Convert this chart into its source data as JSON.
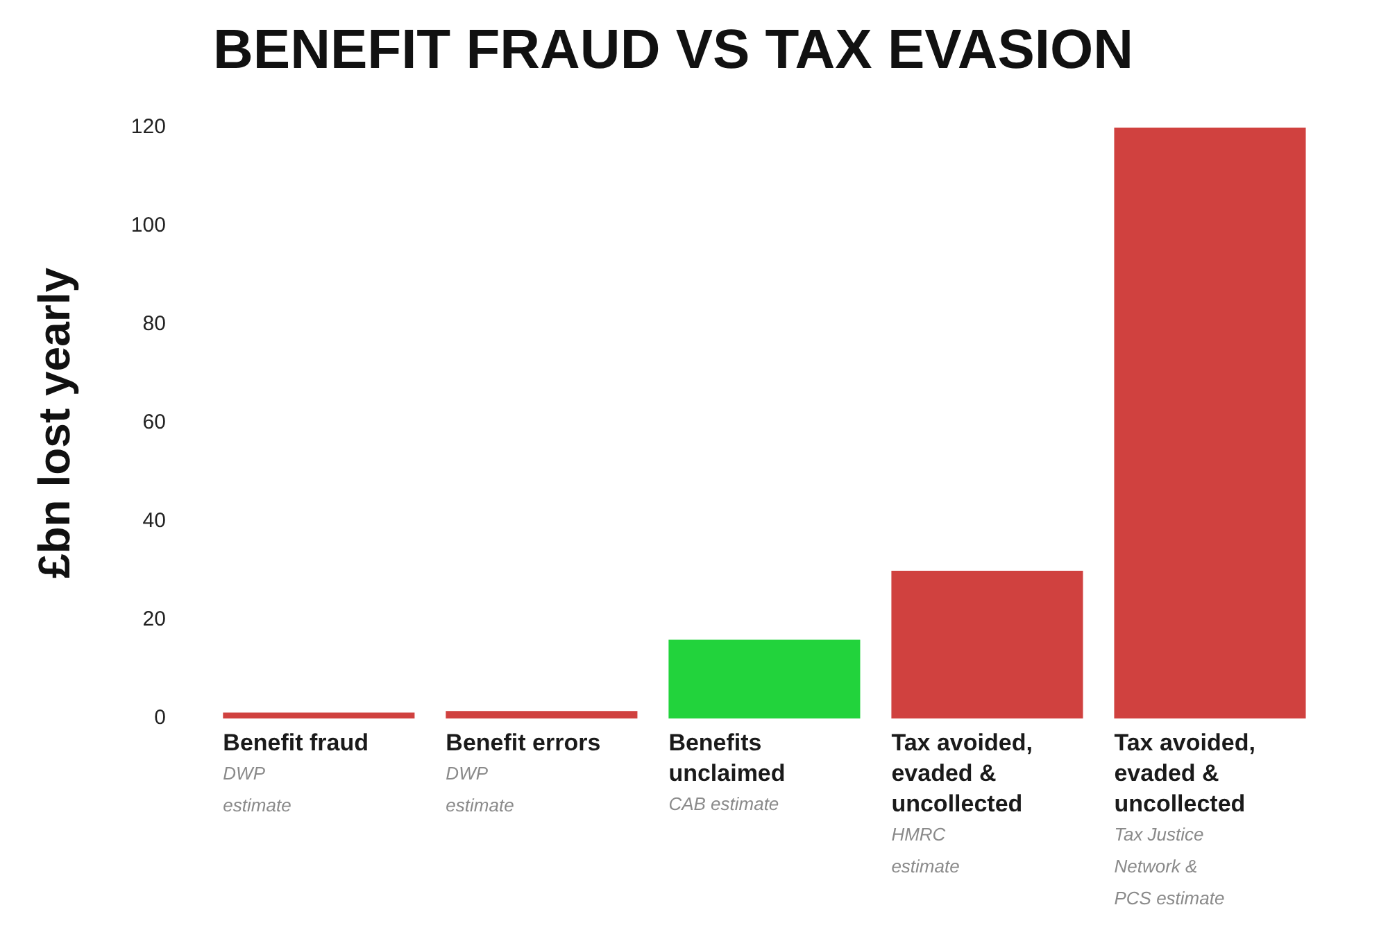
{
  "chart_data": {
    "type": "bar",
    "title": "BENEFIT FRAUD VS TAX EVASION",
    "ylabel": "£bn lost yearly",
    "categories": [
      "Benefit fraud",
      "Benefit errors",
      "Benefits unclaimed",
      "Tax avoided, evaded & uncollected",
      "Tax avoided, evaded & uncollected"
    ],
    "values": [
      1.2,
      1.5,
      16,
      30,
      120
    ],
    "colors": [
      "#d0413f",
      "#d0413f",
      "#22d33c",
      "#d0413f",
      "#d0413f"
    ],
    "ylim": [
      0,
      120
    ],
    "yticks": [
      0,
      20,
      40,
      60,
      80,
      100,
      120
    ],
    "grid": false,
    "legend": false,
    "annotations": [
      "DWP estimate",
      "DWP estimate",
      "CAB estimate",
      "HMRC estimate",
      "Tax Justice Network & PCS estimate"
    ]
  }
}
